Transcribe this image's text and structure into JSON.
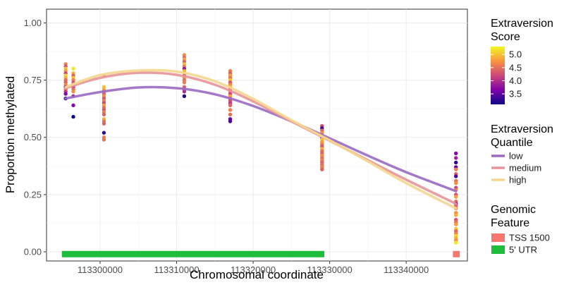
{
  "chart_data": {
    "type": "scatter",
    "xlabel": "Chromosomal coordinate",
    "ylabel": "Proportion methylated",
    "xlim": [
      113293000,
      113348000
    ],
    "ylim": [
      -0.04,
      1.06
    ],
    "x_ticks": [
      113300000,
      113310000,
      113320000,
      113330000,
      113340000
    ],
    "x_tick_labels": [
      "113300000",
      "113310000",
      "113320000",
      "113330000",
      "113340000"
    ],
    "y_ticks": [
      0,
      0.25,
      0.5,
      0.75,
      1.0
    ],
    "y_tick_labels": [
      "0.00",
      "0.25",
      "0.50",
      "0.75",
      "1.00"
    ],
    "grid": true,
    "legend_position": "right",
    "color_scale": {
      "title_lines": [
        "Extraversion",
        "Score"
      ],
      "range": [
        3.1,
        5.3
      ],
      "ticks": [
        3.5,
        4.0,
        4.5,
        5.0
      ],
      "tick_labels": [
        "3.5",
        "4.0",
        "4.5",
        "5.0"
      ],
      "colors": [
        "#0d0887",
        "#7e03a8",
        "#cc4778",
        "#f89540",
        "#f0f921"
      ]
    },
    "points": [
      {
        "x": 113295500,
        "values": [
          0.82,
          0.81,
          0.8,
          0.79,
          0.78,
          0.77,
          0.76,
          0.75,
          0.74,
          0.73,
          0.72,
          0.71,
          0.7,
          0.69,
          0.67
        ],
        "scores": [
          4.6,
          4.3,
          5.0,
          4.8,
          4.2,
          5.1,
          4.9,
          4.5,
          4.4,
          4.7,
          3.9,
          4.6,
          4.1,
          3.7,
          3.2
        ]
      },
      {
        "x": 113296500,
        "values": [
          0.8,
          0.78,
          0.77,
          0.76,
          0.75,
          0.74,
          0.73,
          0.72,
          0.71,
          0.7,
          0.68,
          0.64,
          0.59
        ],
        "scores": [
          5.2,
          4.9,
          4.4,
          5.0,
          4.6,
          4.3,
          4.8,
          4.0,
          4.5,
          4.7,
          3.9,
          3.7,
          3.1
        ]
      },
      {
        "x": 113300500,
        "values": [
          0.77,
          0.72,
          0.71,
          0.7,
          0.69,
          0.68,
          0.67,
          0.66,
          0.65,
          0.64,
          0.63,
          0.62,
          0.61,
          0.6,
          0.58,
          0.57,
          0.56,
          0.52,
          0.5,
          0.49
        ],
        "scores": [
          4.8,
          5.0,
          4.9,
          4.5,
          4.4,
          4.7,
          4.3,
          4.6,
          4.2,
          4.8,
          4.5,
          4.3,
          4.6,
          4.4,
          4.9,
          4.5,
          4.4,
          3.3,
          4.6,
          4.5
        ]
      },
      {
        "x": 113311000,
        "values": [
          0.86,
          0.85,
          0.84,
          0.83,
          0.82,
          0.81,
          0.8,
          0.79,
          0.78,
          0.77,
          0.76,
          0.75,
          0.74,
          0.72,
          0.71,
          0.7,
          0.68
        ],
        "scores": [
          4.7,
          4.5,
          4.8,
          4.4,
          5.0,
          4.6,
          3.8,
          4.9,
          5.1,
          4.3,
          4.7,
          4.5,
          4.6,
          4.4,
          4.2,
          4.0,
          3.2
        ]
      },
      {
        "x": 113317000,
        "values": [
          0.79,
          0.78,
          0.77,
          0.76,
          0.75,
          0.74,
          0.73,
          0.72,
          0.71,
          0.7,
          0.69,
          0.68,
          0.67,
          0.66,
          0.65,
          0.64,
          0.62,
          0.6,
          0.58,
          0.57
        ],
        "scores": [
          4.6,
          4.4,
          4.8,
          4.5,
          5.0,
          4.3,
          4.7,
          4.9,
          4.4,
          4.6,
          4.2,
          4.8,
          4.5,
          4.3,
          4.1,
          4.4,
          4.6,
          4.5,
          3.5,
          3.4
        ]
      },
      {
        "x": 113329000,
        "values": [
          0.55,
          0.54,
          0.53,
          0.52,
          0.51,
          0.5,
          0.49,
          0.48,
          0.47,
          0.46,
          0.45,
          0.44,
          0.43,
          0.42,
          0.41,
          0.4,
          0.39,
          0.38,
          0.37,
          0.36
        ],
        "scores": [
          4.2,
          3.3,
          4.4,
          4.7,
          4.5,
          3.5,
          5.0,
          4.8,
          4.6,
          4.3,
          4.9,
          4.5,
          4.4,
          4.7,
          4.5,
          4.6,
          4.4,
          4.5,
          4.6,
          4.4
        ]
      },
      {
        "x": 113346500,
        "values": [
          0.43,
          0.41,
          0.39,
          0.37,
          0.36,
          0.34,
          0.33,
          0.31,
          0.3,
          0.28,
          0.27,
          0.25,
          0.24,
          0.22,
          0.21,
          0.2,
          0.19,
          0.17,
          0.16,
          0.14,
          0.13,
          0.12,
          0.1,
          0.09,
          0.08,
          0.07,
          0.06,
          0.05,
          0.04
        ],
        "scores": [
          3.7,
          3.9,
          3.3,
          3.5,
          4.6,
          4.4,
          3.4,
          4.5,
          4.7,
          4.2,
          4.6,
          4.3,
          4.8,
          4.5,
          3.6,
          4.4,
          4.6,
          4.7,
          4.9,
          4.3,
          4.5,
          4.8,
          5.0,
          4.4,
          4.6,
          5.1,
          4.9,
          4.7,
          5.2
        ]
      }
    ],
    "series": [
      {
        "name": "low",
        "color": "#9b6cc4",
        "x": [
          113295500,
          113300000,
          113305000,
          113310000,
          113315000,
          113320000,
          113325000,
          113330000,
          113335000,
          113340000,
          113346500
        ],
        "values": [
          0.67,
          0.698,
          0.718,
          0.715,
          0.688,
          0.637,
          0.57,
          0.496,
          0.42,
          0.348,
          0.265
        ]
      },
      {
        "name": "medium",
        "color": "#e8969a",
        "x": [
          113295500,
          113300000,
          113305000,
          113310000,
          113315000,
          113320000,
          113325000,
          113330000,
          113335000,
          113340000,
          113346500
        ],
        "values": [
          0.715,
          0.76,
          0.782,
          0.773,
          0.73,
          0.657,
          0.57,
          0.485,
          0.4,
          0.315,
          0.21
        ]
      },
      {
        "name": "high",
        "color": "#f5d78e",
        "x": [
          113295500,
          113300000,
          113305000,
          113310000,
          113315000,
          113320000,
          113325000,
          113330000,
          113335000,
          113340000,
          113346500
        ],
        "values": [
          0.72,
          0.772,
          0.792,
          0.787,
          0.745,
          0.668,
          0.575,
          0.487,
          0.395,
          0.3,
          0.19
        ]
      }
    ],
    "line_legend": {
      "title_lines": [
        "Extraversion",
        "Quantile"
      ],
      "items": [
        "low",
        "medium",
        "high"
      ]
    },
    "features": [
      {
        "name": "TSS 1500",
        "color": "#f8766d",
        "x_start": 113346100,
        "x_end": 113347000,
        "y": -0.01
      },
      {
        "name": "5' UTR",
        "color": "#1fbd3c",
        "x_start": 113295000,
        "x_end": 113329300,
        "y": -0.01
      }
    ],
    "feature_legend": {
      "title_lines": [
        "Genomic",
        "Feature"
      ],
      "items": [
        {
          "label": "TSS 1500",
          "color": "#f8766d"
        },
        {
          "label": "5' UTR",
          "color": "#1fbd3c"
        }
      ]
    }
  }
}
